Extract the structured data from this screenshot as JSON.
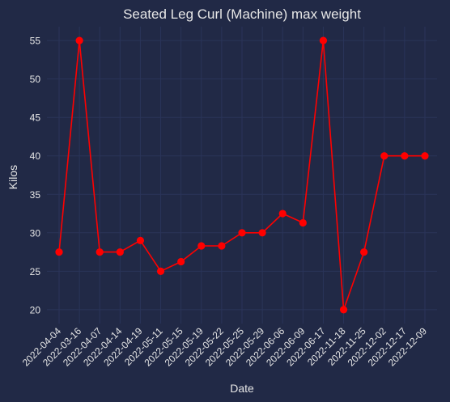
{
  "chart_data": {
    "type": "line",
    "title": "Seated Leg Curl (Machine) max weight",
    "xlabel": "Date",
    "ylabel": "Kilos",
    "categories": [
      "2022-04-04",
      "2022-03-16",
      "2022-04-07",
      "2022-04-14",
      "2022-04-19",
      "2022-05-11",
      "2022-05-15",
      "2022-05-19",
      "2022-05-22",
      "2022-05-25",
      "2022-05-29",
      "2022-06-06",
      "2022-06-09",
      "2022-06-17",
      "2022-11-18",
      "2022-11-25",
      "2022-12-02",
      "2022-12-17",
      "2022-12-09"
    ],
    "series": [
      {
        "values": [
          27.5,
          55,
          27.5,
          27.5,
          29,
          25,
          26.25,
          28.3,
          28.3,
          30,
          30,
          32.5,
          31.3,
          55,
          20,
          27.5,
          40,
          40,
          40
        ]
      }
    ],
    "yticks": [
      20,
      25,
      30,
      35,
      40,
      45,
      50,
      55
    ],
    "ylim": [
      18.2,
      56.8
    ],
    "grid": true,
    "legend": "none",
    "colors": {
      "background": "#212946",
      "grid": "#2A3459",
      "line": "#FF0000",
      "text": "#E6E6E6"
    }
  }
}
